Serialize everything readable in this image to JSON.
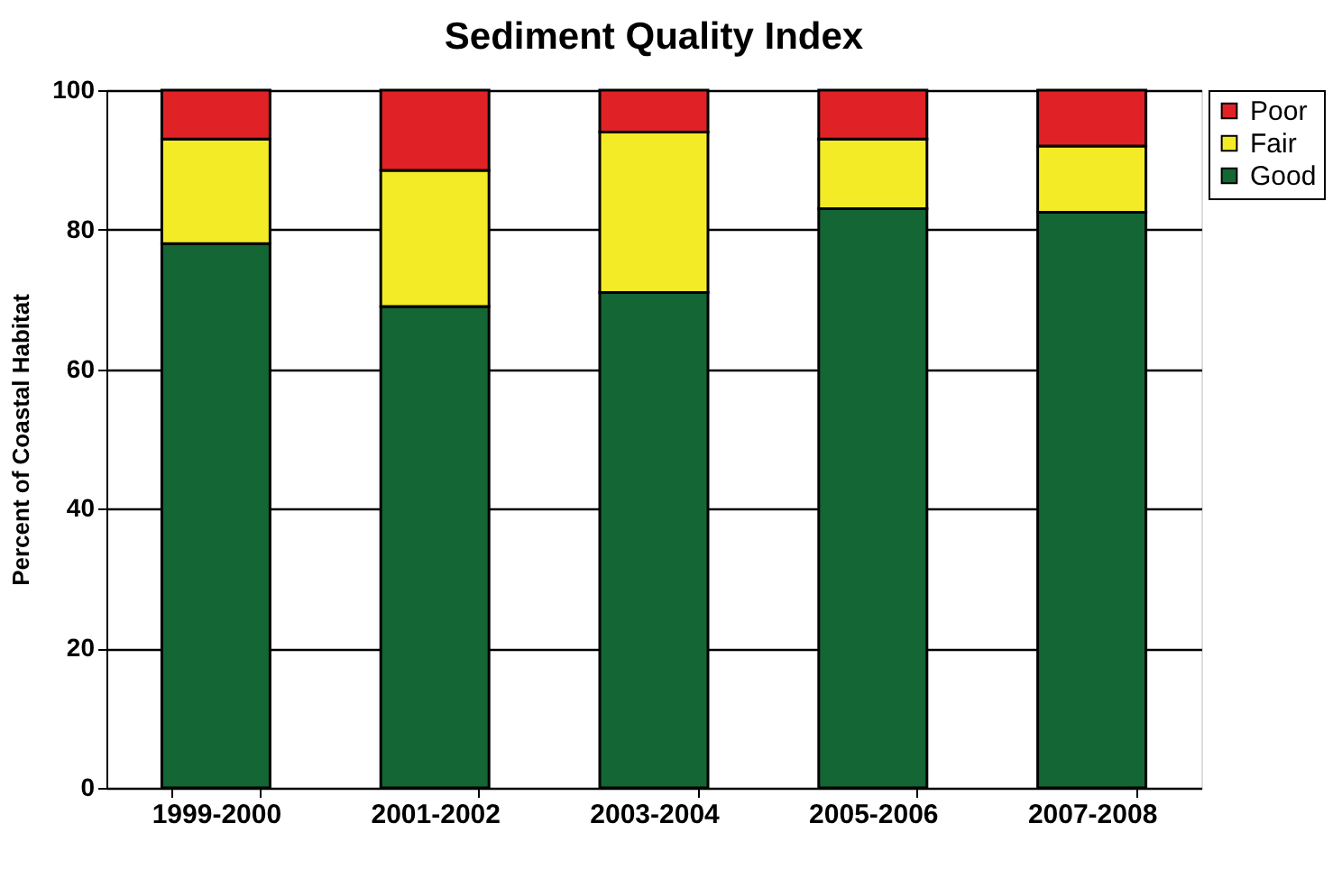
{
  "chart_data": {
    "type": "bar",
    "title": "Sediment Quality Index",
    "ylabel": "Percent of Coastal Habitat",
    "stacked": true,
    "categories": [
      "1999-2000",
      "2001-2002",
      "2003-2004",
      "2005-2006",
      "2007-2008"
    ],
    "series": [
      {
        "name": "Good",
        "color": "#146634",
        "values": [
          78,
          69,
          71,
          83,
          82.5
        ]
      },
      {
        "name": "Fair",
        "color": "#f4eb27",
        "values": [
          15,
          19.5,
          23,
          10,
          9.5
        ]
      },
      {
        "name": "Poor",
        "color": "#e02226",
        "values": [
          7,
          11.5,
          6,
          7,
          8
        ]
      }
    ],
    "ylim": [
      0,
      100
    ],
    "yticks": [
      0,
      20,
      40,
      60,
      80,
      100
    ],
    "grid": "y",
    "legend": "top right"
  }
}
